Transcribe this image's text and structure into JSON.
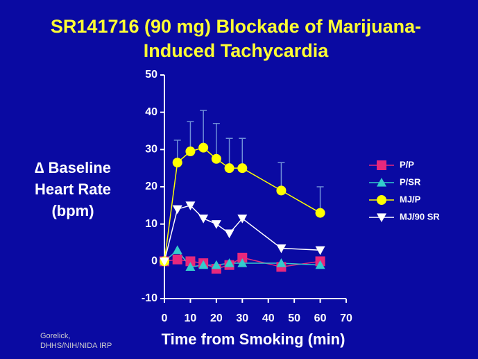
{
  "chart_data": {
    "type": "line",
    "title": [
      "SR141716 (90 mg) Blockade of Marijuana-",
      "Induced Tachycardia"
    ],
    "y_label": [
      "∆ Baseline",
      "Heart Rate",
      "(bpm)"
    ],
    "x_label": "Time from Smoking (min)",
    "credit": [
      "Gorelick,",
      "DHHS/NIH/NIDA IRP"
    ],
    "x": [
      0,
      5,
      10,
      15,
      20,
      25,
      30,
      45,
      60
    ],
    "series": [
      {
        "name": "P/P",
        "color": "#e8287c",
        "marker": "square",
        "values": [
          0,
          0.5,
          0,
          -0.5,
          -2,
          -1,
          1,
          -1.5,
          0
        ]
      },
      {
        "name": "P/SR",
        "color": "#33cccc",
        "marker": "triangle",
        "values": [
          0,
          3,
          -1.5,
          -1,
          -1,
          -0.5,
          -0.5,
          -0.5,
          -1
        ]
      },
      {
        "name": "MJ/P",
        "color": "#ffff00",
        "marker": "circle",
        "values": [
          0,
          26.5,
          29.5,
          30.5,
          27.5,
          25,
          25,
          19,
          13
        ],
        "errors": [
          null,
          6,
          8,
          10,
          9.5,
          8,
          8,
          7.5,
          7
        ]
      },
      {
        "name": "MJ/90 SR",
        "color": "#ffffff",
        "marker": "triangle-down",
        "values": [
          0,
          14,
          15,
          11.5,
          10,
          7.5,
          11.5,
          3.5,
          3
        ]
      }
    ],
    "xlim": [
      0,
      70
    ],
    "xticks": [
      0,
      10,
      20,
      30,
      40,
      50,
      60,
      70
    ],
    "ylim": [
      -10,
      50
    ],
    "yticks": [
      -10,
      0,
      10,
      20,
      30,
      40,
      50
    ],
    "grid": false,
    "legend": "right"
  }
}
